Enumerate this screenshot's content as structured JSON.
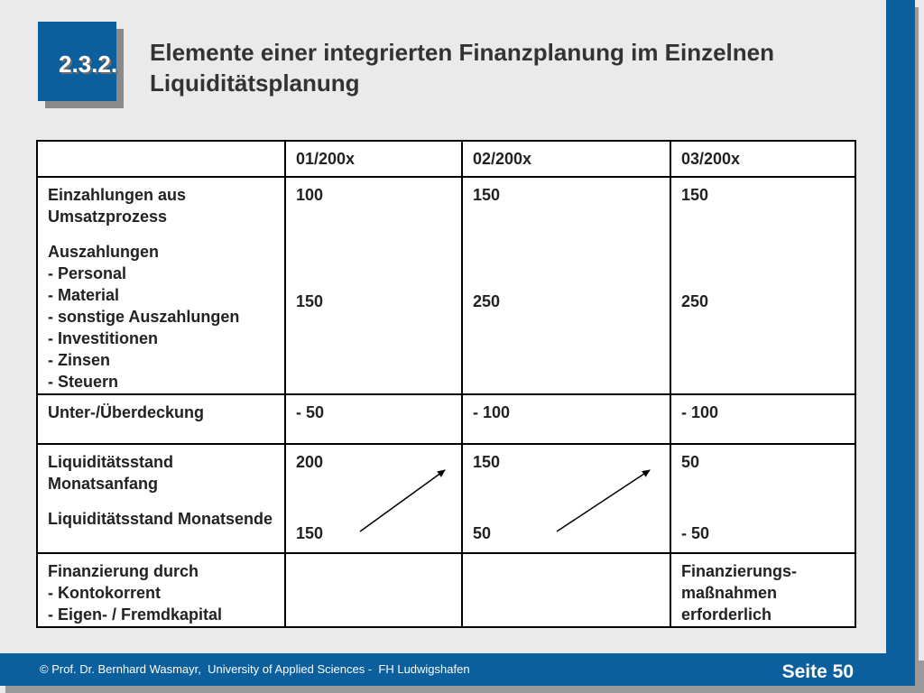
{
  "section_number": "2.3.2.",
  "title_line1": "Elemente einer integrierten Finanzplanung im Einzelnen",
  "title_line2": "Liquiditätsplanung",
  "table": {
    "header": {
      "c0": "",
      "c1": "01/200x",
      "c2": "02/200x",
      "c3": "03/200x"
    },
    "row1": {
      "label_einzahlungen": "Einzahlungen aus Umsatzprozess",
      "label_auszahlungen": "Auszahlungen",
      "auszahlungen_items": [
        "- Personal",
        "- Material",
        "- sonstige Auszahlungen",
        "- Investitionen",
        "- Zinsen",
        "- Steuern"
      ],
      "einzahlungen_values": [
        "100",
        "150",
        "150"
      ],
      "auszahlungen_values": [
        "150",
        "250",
        "250"
      ]
    },
    "row2": {
      "label": "Unter-/Überdeckung",
      "values": [
        "- 50",
        "- 100",
        "- 100"
      ]
    },
    "row3": {
      "label_anfang": "Liquiditätsstand Monatsanfang",
      "label_ende": "Liquiditätsstand Monatsende",
      "anfang_values": [
        "200",
        "150",
        "50"
      ],
      "ende_values": [
        "150",
        "50",
        "- 50"
      ]
    },
    "row4": {
      "label": [
        "Finanzierung durch",
        "- Kontokorrent",
        "- Eigen- / Fremdkapital"
      ],
      "values": [
        "",
        "",
        "Finanzierungs- maßnahmen erforderlich"
      ]
    }
  },
  "footer": {
    "copyright": "© Prof. Dr. Bernhard Wasmayr,  University of Applied Sciences -  FH Ludwigshafen",
    "page": "Seite 50"
  }
}
